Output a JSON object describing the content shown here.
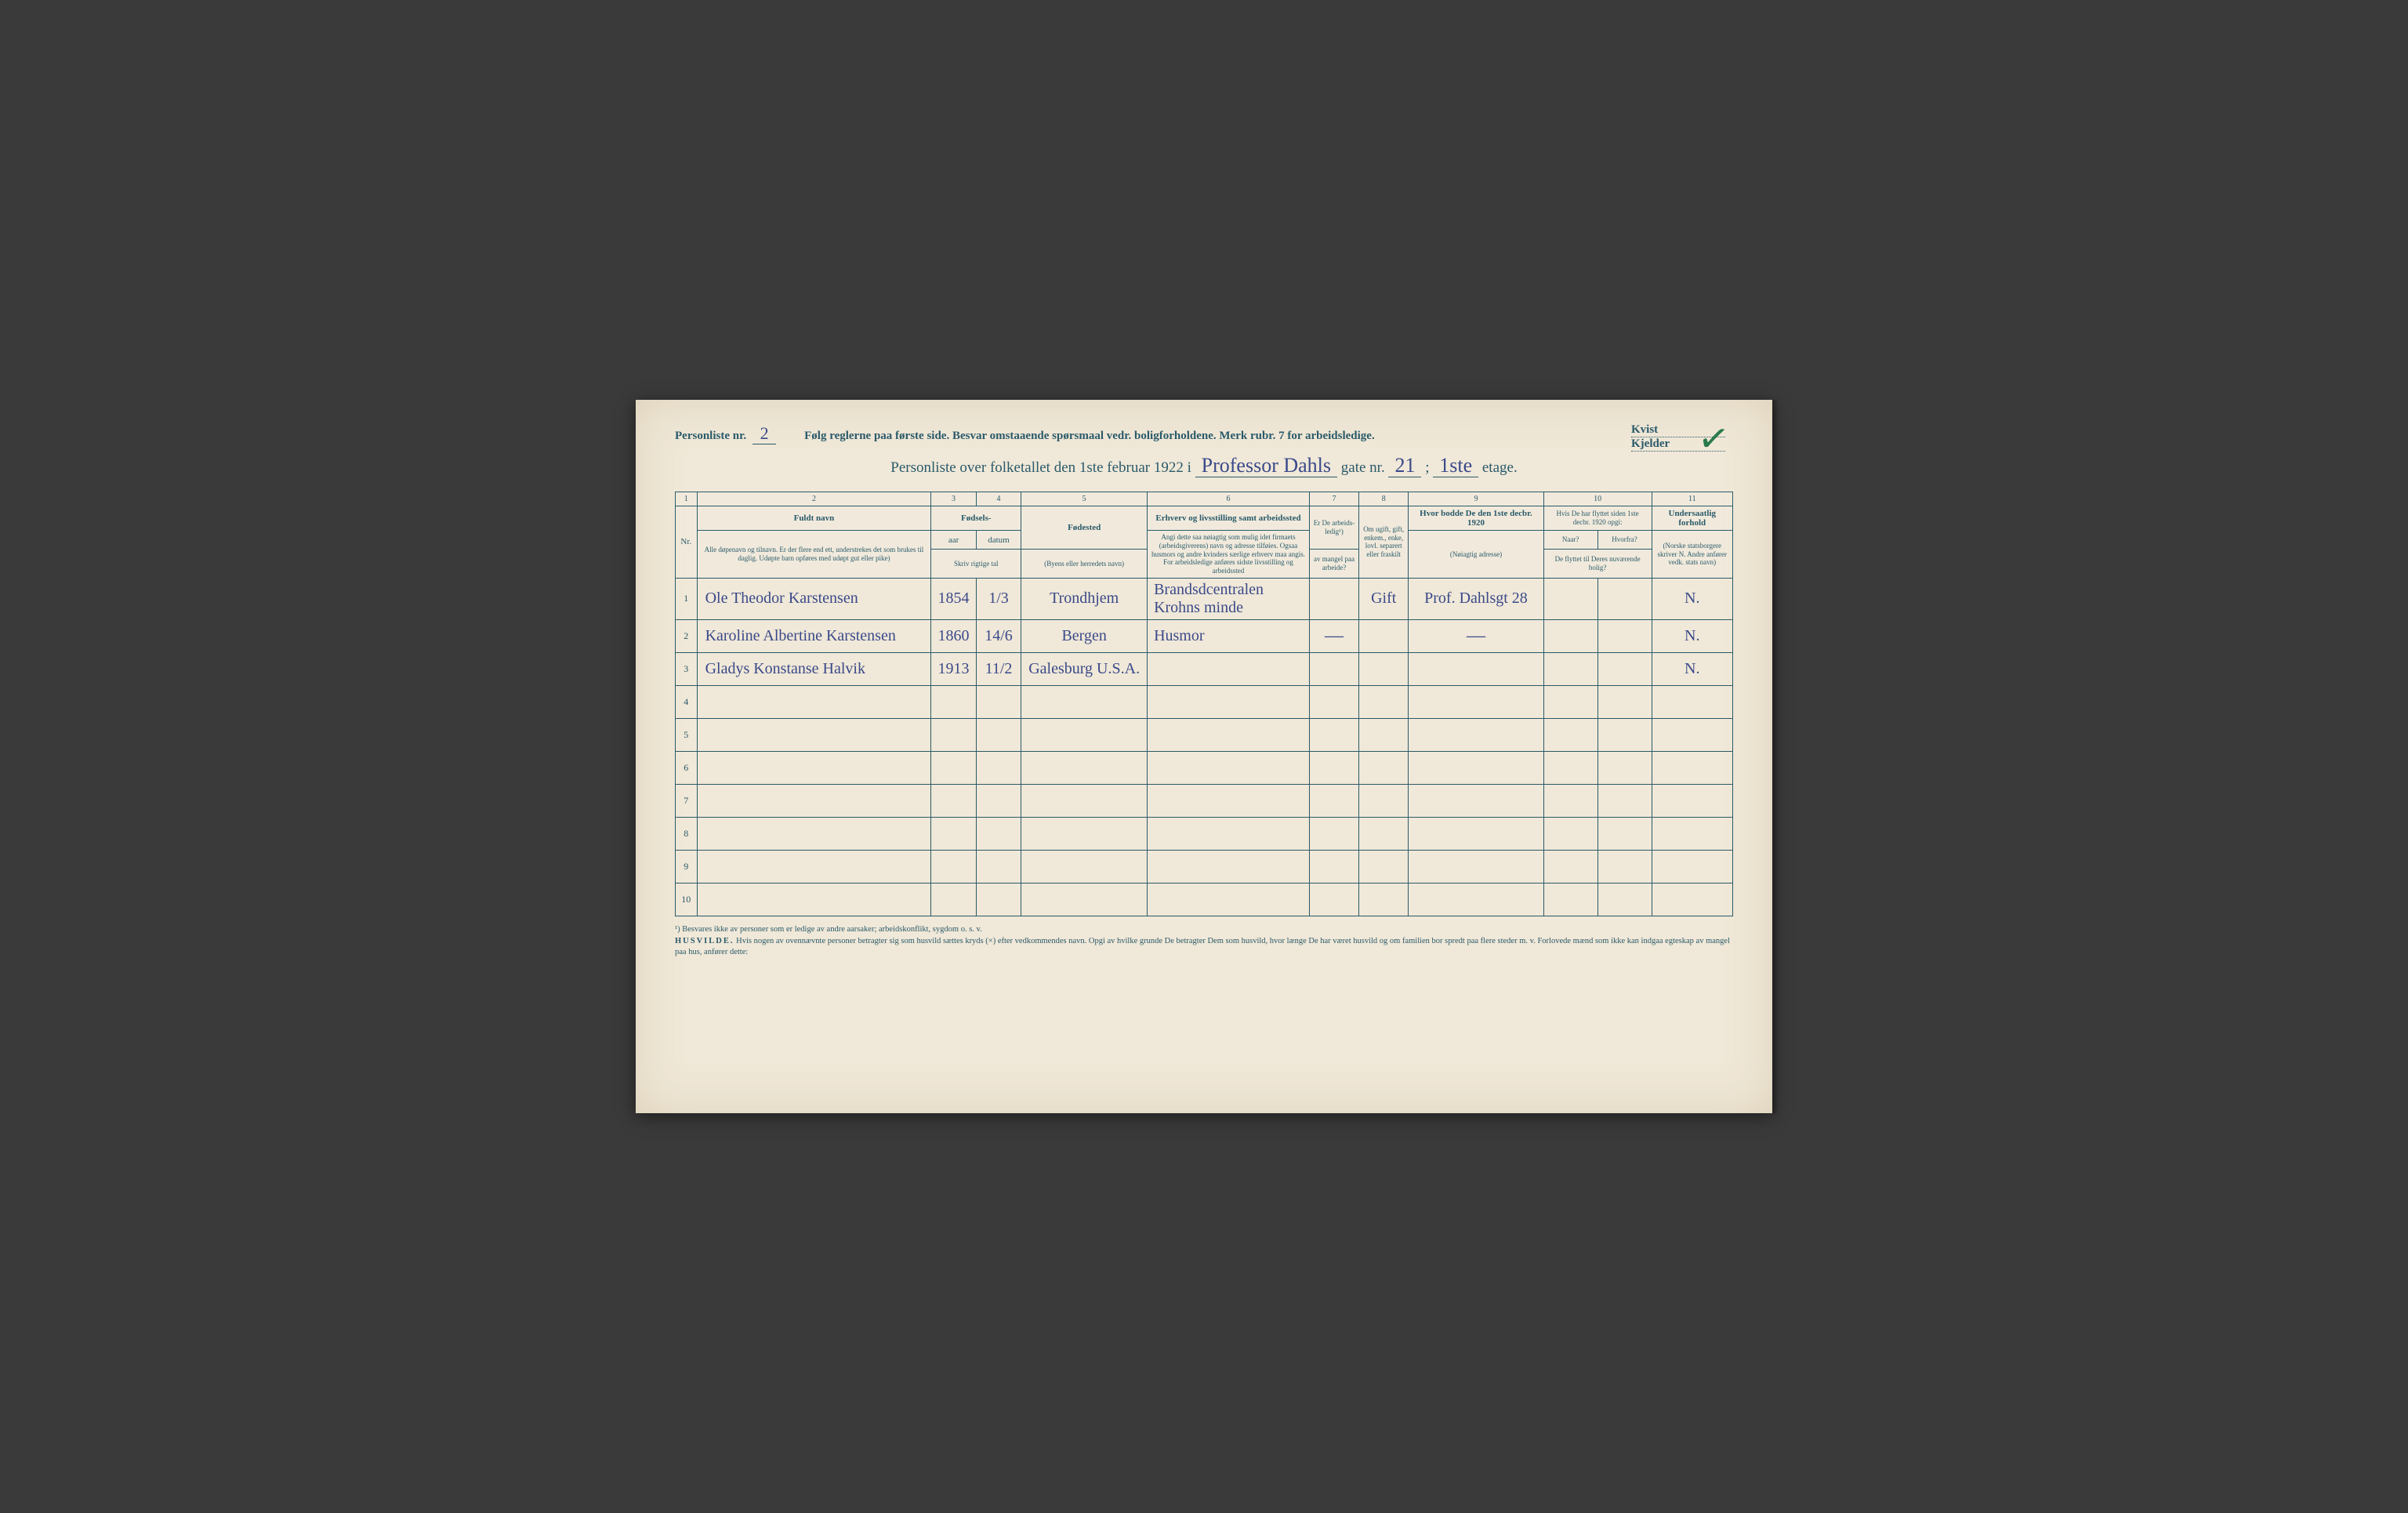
{
  "header": {
    "list_nr_label": "Personliste nr.",
    "list_nr_value": "2",
    "instructions": "Følg reglerne paa første side.  Besvar omstaaende spørsmaal vedr. boligforholdene.  Merk rubr. 7 for arbeidsledige.",
    "kvist_label": "Kvist",
    "kjelder_label": "Kjelder",
    "checkmark": "✓"
  },
  "title": {
    "prefix": "Personliste over folketallet den 1ste februar 1922 i",
    "street": "Professor Dahls",
    "gate_label": "gate nr.",
    "gate_nr": "21",
    "sep": ";",
    "floor": "1ste",
    "etage": "etage."
  },
  "columns": {
    "c1": "1",
    "c2": "2",
    "c3": "3",
    "c4": "4",
    "c5": "5",
    "c6": "6",
    "c7": "7",
    "c8": "8",
    "c9": "9",
    "c10": "10",
    "c11": "11",
    "nr": "Nr.",
    "name_head": "Fuldt navn",
    "name_sub": "Alle døpenavn og tilnavn. Er der flere end ett, understrekes det som brukes til daglig. Udøpte barn opføres med udøpt gut eller pike)",
    "birth_head": "Fødsels-",
    "aar": "aar",
    "datum": "datum",
    "birth_sub": "Skriv rigtige tal",
    "place_head": "Fødested",
    "place_sub": "(Byens eller herredets navn)",
    "occ_head": "Erhverv og livsstilling samt arbeidssted",
    "occ_sub": "Angi dette saa nøiagtig som mulig idet firmaets (arbeidsgiverens) navn og adresse tilføies. Ogsaa husmors og andre kvinders særlige erhverv maa angis. For arbeidsledige anføres sidste livsstilling og arbeidssted",
    "c7_head": "Er De arbeids-ledig¹)",
    "c7_sub": "av mangel paa arbeide?",
    "c8_head": "Om ugift, gift, enkem., enke, lovl. separert eller fraskilt",
    "c9_head": "Hvor bodde De den 1ste decbr. 1920",
    "c9_sub": "(Nøiagtig adresse)",
    "c10_head": "Hvis De har flyttet siden 1ste decbr. 1920 opgi:",
    "c10a": "Naar?",
    "c10b": "Hvorfra?",
    "c10_sub": "De flyttet til Deres nuværende bolig?",
    "c11_head": "Undersaatlig forhold",
    "c11_sub": "(Norske statsborgere skriver N. Andre anfører vedk. stats navn)"
  },
  "rows": [
    {
      "n": "1",
      "name": "Ole Theodor Karstensen",
      "year": "1854",
      "date": "1/3",
      "place": "Trondhjem",
      "occ": "Brandsdcentralen Krohns minde",
      "c7": "",
      "c8": "Gift",
      "c9": "Prof. Dahlsgt 28",
      "c10a": "",
      "c10b": "",
      "c11": "N."
    },
    {
      "n": "2",
      "name": "Karoline Albertine Karstensen",
      "year": "1860",
      "date": "14/6",
      "place": "Bergen",
      "occ": "Husmor",
      "c7": "—",
      "c8": "",
      "c9": "—",
      "c10a": "",
      "c10b": "",
      "c11": "N."
    },
    {
      "n": "3",
      "name": "Gladys Konstanse Halvik",
      "year": "1913",
      "date": "11/2",
      "place": "Galesburg U.S.A.",
      "occ": "",
      "c7": "",
      "c8": "",
      "c9": "",
      "c10a": "",
      "c10b": "",
      "c11": "N."
    },
    {
      "n": "4",
      "name": "",
      "year": "",
      "date": "",
      "place": "",
      "occ": "",
      "c7": "",
      "c8": "",
      "c9": "",
      "c10a": "",
      "c10b": "",
      "c11": ""
    },
    {
      "n": "5",
      "name": "",
      "year": "",
      "date": "",
      "place": "",
      "occ": "",
      "c7": "",
      "c8": "",
      "c9": "",
      "c10a": "",
      "c10b": "",
      "c11": ""
    },
    {
      "n": "6",
      "name": "",
      "year": "",
      "date": "",
      "place": "",
      "occ": "",
      "c7": "",
      "c8": "",
      "c9": "",
      "c10a": "",
      "c10b": "",
      "c11": ""
    },
    {
      "n": "7",
      "name": "",
      "year": "",
      "date": "",
      "place": "",
      "occ": "",
      "c7": "",
      "c8": "",
      "c9": "",
      "c10a": "",
      "c10b": "",
      "c11": ""
    },
    {
      "n": "8",
      "name": "",
      "year": "",
      "date": "",
      "place": "",
      "occ": "",
      "c7": "",
      "c8": "",
      "c9": "",
      "c10a": "",
      "c10b": "",
      "c11": ""
    },
    {
      "n": "9",
      "name": "",
      "year": "",
      "date": "",
      "place": "",
      "occ": "",
      "c7": "",
      "c8": "",
      "c9": "",
      "c10a": "",
      "c10b": "",
      "c11": ""
    },
    {
      "n": "10",
      "name": "",
      "year": "",
      "date": "",
      "place": "",
      "occ": "",
      "c7": "",
      "c8": "",
      "c9": "",
      "c10a": "",
      "c10b": "",
      "c11": ""
    }
  ],
  "footnotes": {
    "f1": "¹) Besvares ikke av personer som er ledige av andre aarsaker; arbeidskonflikt, sygdom o. s. v.",
    "husvilde_label": "HUSVILDE.",
    "f2": "Hvis nogen av ovennævnte personer betragter sig som husvild sættes kryds (×) efter vedkommendes navn. Opgi av hvilke grunde De betragter Dem som husvild, hvor længe De har været husvild og om familien bor spredt paa flere steder m. v. Forlovede mænd som ikke kan indgaa egteskap av mangel paa hus, anfører dette:"
  }
}
